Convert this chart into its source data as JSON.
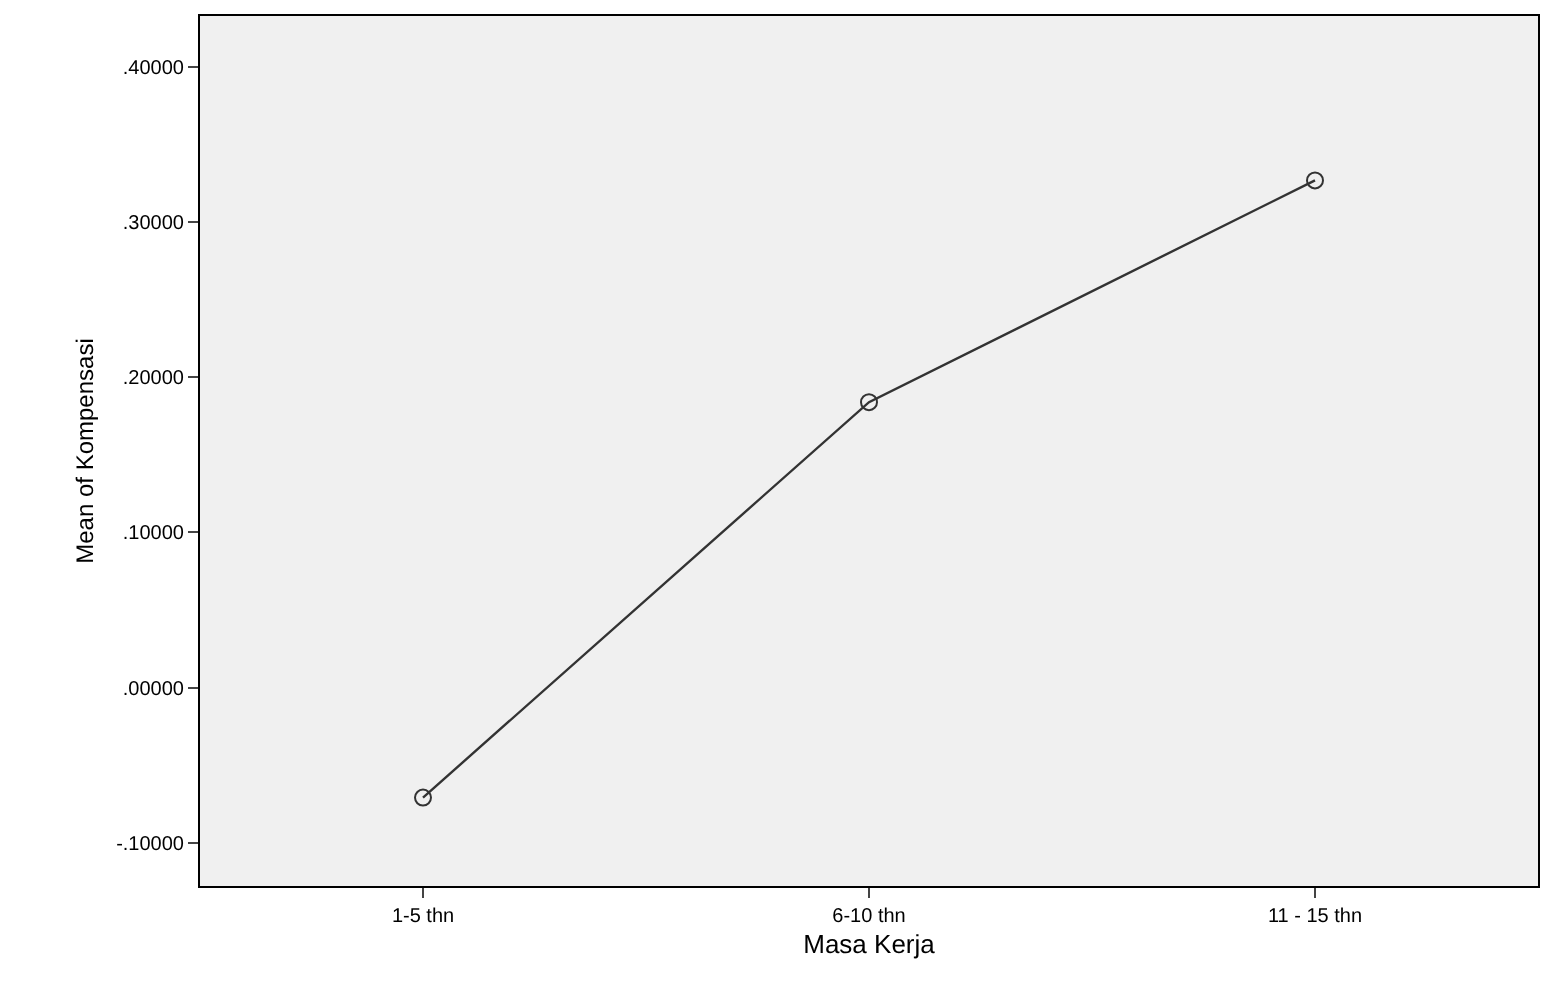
{
  "chart_data": {
    "type": "line",
    "xlabel": "Masa Kerja",
    "ylabel": "Mean of Kompensasi",
    "categories": [
      "1-5 thn",
      "6-10 thn",
      "11 - 15 thn"
    ],
    "series": [
      {
        "color": "#333333",
        "values": [
          -0.071,
          0.184,
          0.327
        ]
      }
    ],
    "ylim": [
      -0.128,
      0.433
    ],
    "yticks": [
      {
        "value": -0.1,
        "label": "-.10000"
      },
      {
        "value": 0,
        "label": ".00000"
      },
      {
        "value": 0.1,
        "label": ".10000"
      },
      {
        "value": 0.2,
        "label": ".20000"
      },
      {
        "value": 0.3,
        "label": ".30000"
      },
      {
        "value": 0.4,
        "label": ".40000"
      }
    ],
    "marker": "circle",
    "grid": false
  }
}
